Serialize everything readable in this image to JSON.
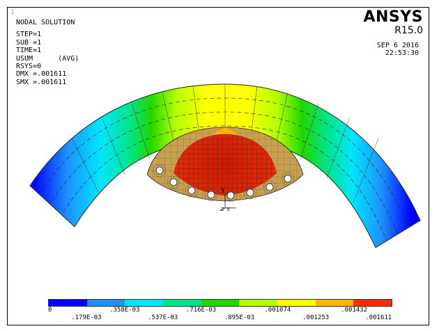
{
  "window": {
    "number": "1"
  },
  "header": {
    "title": "NODAL SOLUTION",
    "lines": [
      "STEP=1",
      "SUB =1",
      "TIME=1",
      "USUM      (AVG)",
      "RSYS=0",
      "DMX =.001611",
      "SMX =.001611"
    ]
  },
  "brand": {
    "name": "ANSYS",
    "version": "R15.0"
  },
  "timestamp": {
    "date": "SEP  6 2016",
    "time": "22:53:30"
  },
  "legend": {
    "colors": [
      "#0000ff",
      "#1e8fff",
      "#00e5ff",
      "#00e58c",
      "#22d600",
      "#b4ff00",
      "#ffff00",
      "#ffb400",
      "#ff2a00"
    ],
    "top_labels": [
      "0",
      ".358E-03",
      ".716E-03",
      ".001074",
      ".001432"
    ],
    "bottom_labels": [
      ".179E-03",
      ".537E-03",
      ".895E-03",
      ".001253",
      ".001611"
    ]
  },
  "triad": {
    "label": "Y\nZ X"
  }
}
